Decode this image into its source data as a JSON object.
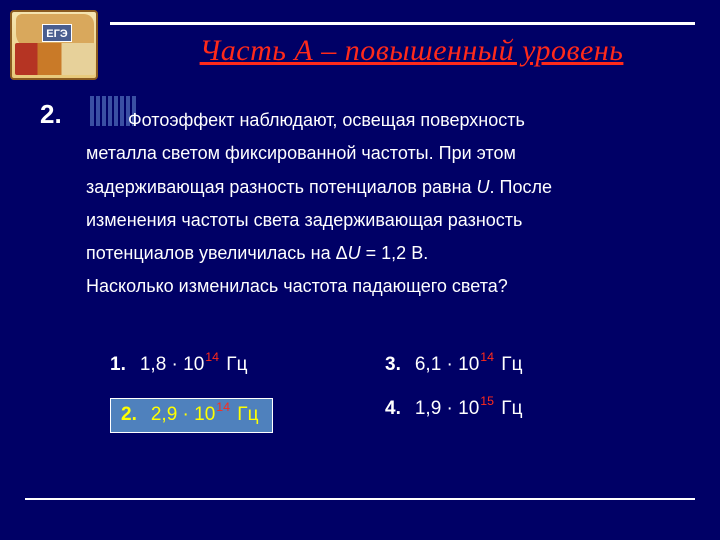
{
  "colors": {
    "background": "#000066",
    "title": "#ff2a1a",
    "text": "#ffffff",
    "exponent": "#ff2a1a",
    "highlight_bg": "#4f81bd",
    "highlight_text": "#ffff00",
    "highlight_border": "#ffffff",
    "decor_stripe": "#3a4fa3"
  },
  "logo": {
    "tag": "ЕГЭ"
  },
  "title": "Часть  А  –  повышенный уровень",
  "question": {
    "number": "2.",
    "line1": "Фотоэффект наблюдают, освещая поверхность",
    "line2": "металла светом фиксированной частоты. При этом",
    "line3_a": "задерживающая разность потенциалов равна ",
    "line3_var": "U",
    "line3_b": ". После",
    "line4": "изменения частоты света задерживающая разность",
    "line5_a": "потенциалов увеличилась на Δ",
    "line5_var": "U",
    "line5_b": " = 1,2 В.",
    "line6": " Насколько изменилась частота падающего света?"
  },
  "answers": {
    "a1": {
      "num": "1.",
      "pre": "1,8 · 10",
      "exp": "14",
      "post": " Гц"
    },
    "a2": {
      "num": "2.",
      "pre": "2,9 · 10",
      "exp": "14",
      "post": " Гц"
    },
    "a3": {
      "num": "3.",
      "pre": "6,1 · 10",
      "exp": "14",
      "post": " Гц"
    },
    "a4": {
      "num": "4.",
      "pre": "1,9 · 10",
      "exp": "15",
      "post": " Гц"
    }
  }
}
